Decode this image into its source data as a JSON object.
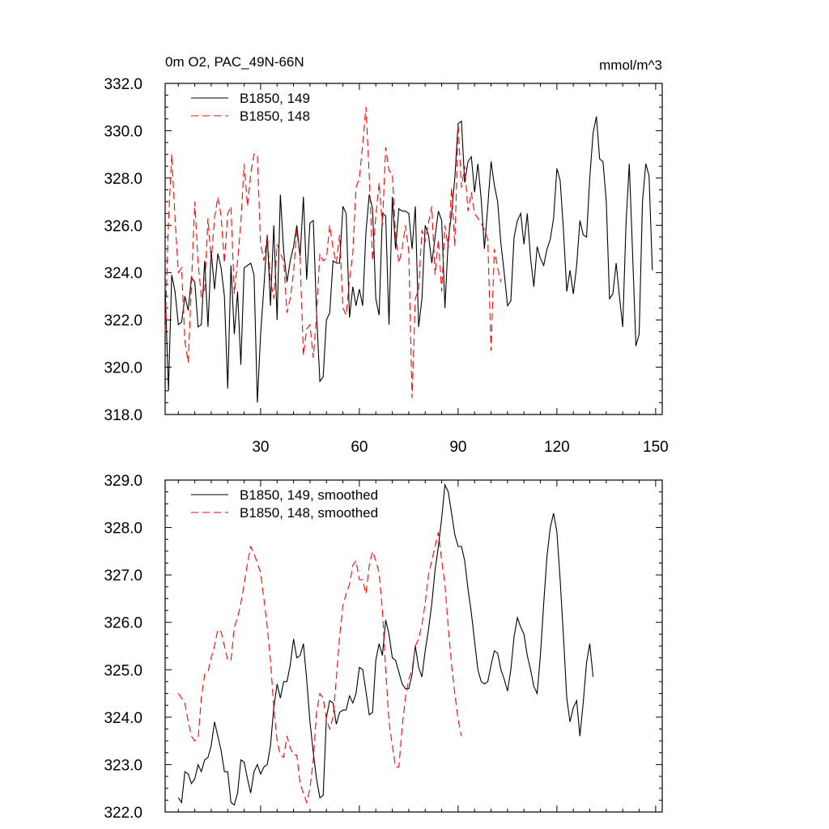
{
  "page": {
    "title": "0m O2, PAC_49N-66N",
    "units": "mmol/m^3"
  },
  "chart_data": [
    {
      "type": "line",
      "title": "0m O2, PAC_49N-66N",
      "units": "mmol/m^3",
      "xlim": [
        1,
        152
      ],
      "ylim": [
        318,
        332
      ],
      "xticks": [
        30,
        60,
        90,
        120,
        150
      ],
      "yticks": [
        318.0,
        320.0,
        322.0,
        324.0,
        326.0,
        328.0,
        330.0,
        332.0
      ],
      "ytick_labels": [
        "318.0",
        "320.0",
        "322.0",
        "324.0",
        "326.0",
        "328.0",
        "330.0",
        "332.0"
      ],
      "legend_position": "top-left",
      "series": [
        {
          "name": "B1850, 149",
          "color": "#000000",
          "dash": "solid",
          "x_start": 1,
          "values": [
            323.3,
            319.0,
            323.9,
            323.2,
            321.8,
            321.9,
            323.0,
            322.4,
            323.8,
            323.6,
            321.7,
            321.8,
            324.5,
            321.7,
            324.9,
            323.3,
            324.8,
            324.2,
            323.0,
            319.1,
            324.3,
            321.4,
            323.2,
            320.1,
            324.2,
            324.3,
            324.4,
            323.9,
            318.5,
            321.4,
            323.4,
            325.6,
            322.6,
            326.0,
            322.0,
            327.3,
            324.9,
            323.6,
            324.5,
            325.1,
            326.0,
            324.7,
            327.2,
            323.7,
            326.1,
            326.2,
            322.3,
            319.4,
            319.6,
            322.0,
            322.3,
            324.5,
            324.4,
            324.4,
            326.8,
            326.5,
            322.1,
            323.4,
            322.6,
            323.3,
            322.6,
            325.7,
            327.3,
            326.7,
            322.9,
            322.2,
            326.5,
            326.4,
            321.8,
            327.2,
            325.0,
            326.7,
            326.6,
            326.6,
            326.5,
            325.0,
            326.8,
            321.7,
            322.9,
            326.0,
            325.6,
            324.4,
            325.5,
            326.6,
            326.2,
            322.5,
            325.4,
            326.5,
            328.0,
            330.3,
            330.4,
            327.8,
            328.7,
            328.9,
            327.4,
            328.6,
            327.1,
            325.0,
            326.8,
            328.7,
            327.7,
            327.0,
            325.2,
            324.0,
            322.6,
            322.8,
            325.5,
            326.2,
            326.5,
            325.2,
            326.5,
            324.6,
            323.4,
            325.1,
            324.6,
            324.3,
            325.0,
            325.4,
            326.3,
            328.4,
            327.9,
            325.8,
            323.2,
            324.1,
            323.1,
            324.3,
            326.2,
            325.6,
            325.5,
            328.0,
            329.9,
            330.6,
            328.8,
            328.7,
            327.0,
            322.9,
            323.1,
            324.4,
            323.0,
            321.7,
            326.1,
            328.6,
            324.8,
            320.9,
            321.4,
            327.0,
            328.6,
            328.1,
            324.1
          ]
        },
        {
          "name": "B1850, 148",
          "color": "#ff0000",
          "dash": "dashed",
          "x_start": 1,
          "values": [
            321.5,
            326.1,
            329.0,
            326.3,
            324.0,
            324.2,
            321.1,
            320.2,
            323.5,
            327.0,
            324.4,
            323.0,
            323.3,
            326.3,
            324.5,
            326.3,
            327.2,
            326.4,
            324.4,
            326.5,
            326.8,
            323.1,
            324.5,
            326.1,
            328.6,
            326.8,
            328.2,
            329.0,
            329.0,
            325.2,
            324.5,
            325.6,
            323.7,
            322.9,
            325.2,
            324.8,
            324.5,
            322.3,
            322.9,
            324.0,
            325.8,
            324.6,
            320.5,
            321.6,
            321.8,
            320.4,
            322.2,
            324.8,
            324.5,
            324.6,
            326.0,
            325.0,
            324.4,
            325.6,
            322.5,
            322.2,
            323.7,
            324.8,
            327.6,
            328.0,
            329.4,
            331.0,
            328.1,
            324.5,
            326.4,
            327.8,
            326.0,
            329.3,
            328.3,
            328.2,
            325.6,
            324.4,
            325.0,
            326.0,
            324.9,
            318.7,
            322.9,
            323.3,
            325.8,
            325.3,
            326.1,
            326.8,
            323.9,
            325.4,
            323.2,
            326.0,
            325.0,
            327.6,
            325.1,
            330.3,
            327.6,
            328.5,
            326.6,
            327.4,
            326.5,
            326.3,
            326.1,
            325.8,
            325.4,
            320.7,
            325.0,
            324.2,
            323.6
          ]
        }
      ]
    },
    {
      "type": "line",
      "xlim": [
        1,
        152
      ],
      "ylim": [
        322,
        329
      ],
      "xticks": [
        30,
        60,
        90,
        120,
        150
      ],
      "yticks": [
        322.0,
        323.0,
        324.0,
        325.0,
        326.0,
        327.0,
        328.0,
        329.0
      ],
      "ytick_labels": [
        "322.0",
        "323.0",
        "324.0",
        "325.0",
        "326.0",
        "327.0",
        "328.0",
        "329.0"
      ],
      "legend_position": "top-left",
      "series": [
        {
          "name": "B1850, 149, smoothed",
          "color": "#000000",
          "dash": "solid",
          "x_start": 5,
          "values": [
            322.3,
            322.2,
            322.85,
            322.8,
            322.6,
            322.7,
            323.0,
            322.85,
            323.1,
            323.15,
            323.4,
            323.9,
            323.6,
            323.3,
            322.85,
            322.85,
            322.2,
            322.15,
            322.4,
            323.1,
            323.05,
            322.7,
            322.4,
            322.85,
            323.0,
            322.8,
            322.95,
            323.0,
            323.4,
            324.2,
            324.7,
            324.4,
            324.75,
            324.75,
            325.1,
            325.65,
            325.25,
            325.3,
            325.55,
            324.8,
            323.9,
            323.25,
            322.7,
            322.3,
            322.35,
            324.0,
            324.35,
            324.3,
            323.85,
            324.1,
            324.15,
            324.15,
            324.45,
            324.3,
            324.5,
            325.05,
            325.0,
            324.55,
            324.05,
            324.1,
            325.2,
            325.55,
            325.3,
            326.05,
            325.75,
            325.25,
            325.2,
            324.95,
            324.7,
            324.6,
            324.6,
            324.9,
            325.5,
            325.05,
            324.85,
            325.4,
            325.85,
            326.4,
            327.1,
            327.6,
            328.2,
            328.9,
            328.75,
            328.3,
            327.85,
            327.6,
            327.6,
            327.3,
            326.7,
            326.2,
            325.6,
            325.0,
            324.75,
            324.7,
            324.75,
            325.1,
            325.4,
            325.35,
            325.0,
            324.8,
            324.55,
            325.0,
            325.7,
            326.1,
            325.9,
            325.75,
            325.3,
            325.0,
            324.65,
            324.5,
            325.3,
            326.4,
            327.4,
            328.0,
            328.3,
            327.9,
            326.9,
            325.7,
            324.4,
            323.9,
            324.2,
            324.35,
            323.6,
            324.3,
            325.15,
            325.55,
            324.85
          ]
        },
        {
          "name": "B1850, 148, smoothed",
          "color": "#ff0000",
          "dash": "dashed",
          "x_start": 5,
          "values": [
            324.5,
            324.4,
            324.3,
            323.9,
            323.6,
            323.5,
            323.55,
            324.4,
            324.9,
            324.95,
            325.25,
            325.5,
            325.85,
            325.8,
            325.5,
            325.2,
            325.2,
            325.9,
            326.1,
            326.4,
            326.8,
            327.25,
            327.6,
            327.45,
            327.25,
            327.05,
            326.5,
            325.9,
            325.2,
            324.2,
            323.5,
            323.2,
            323.15,
            323.6,
            323.35,
            323.2,
            323.2,
            322.6,
            322.4,
            322.2,
            322.5,
            323.1,
            324.1,
            324.5,
            324.4,
            323.95,
            323.75,
            324.0,
            324.8,
            325.7,
            326.35,
            326.6,
            326.8,
            327.2,
            327.3,
            326.9,
            326.9,
            326.6,
            327.2,
            327.5,
            327.3,
            327.05,
            326.25,
            325.0,
            323.9,
            323.4,
            322.95,
            322.95,
            323.8,
            324.4,
            324.8,
            325.0,
            325.5,
            325.65,
            325.95,
            326.4,
            327.0,
            327.3,
            327.6,
            327.9,
            327.3,
            326.8,
            325.9,
            325.1,
            324.5,
            323.95,
            323.6
          ]
        }
      ]
    }
  ]
}
